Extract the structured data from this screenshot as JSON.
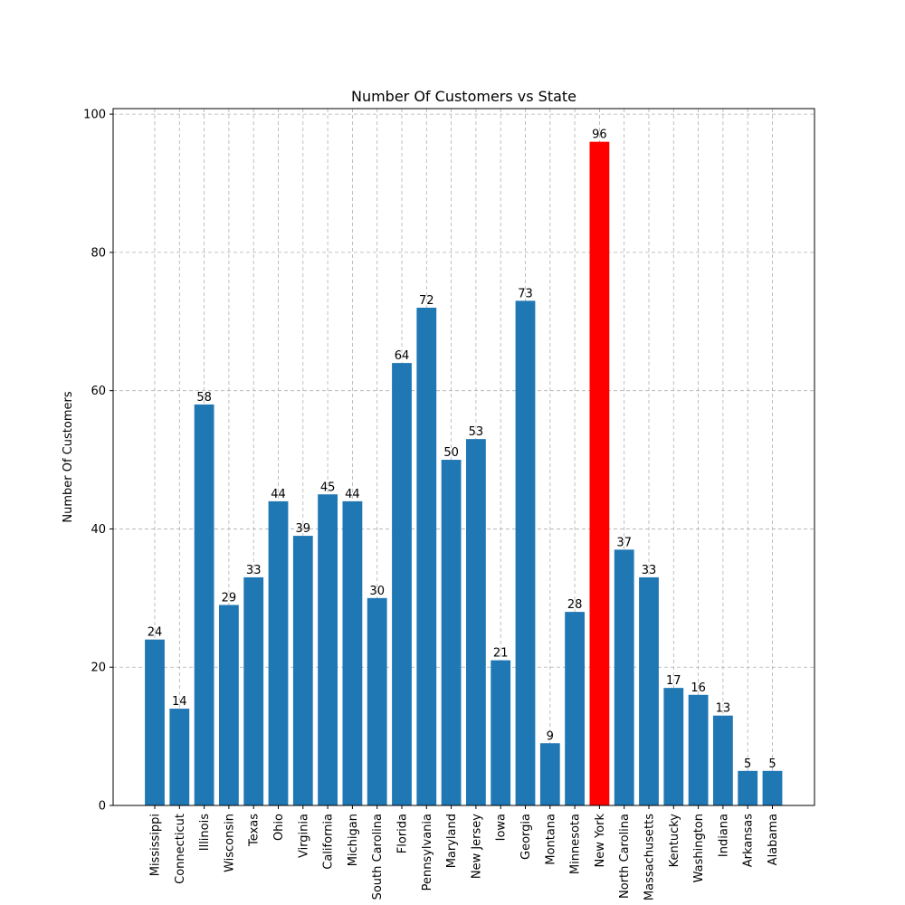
{
  "chart_data": {
    "type": "bar",
    "title": "Number Of Customers vs State",
    "xlabel": "",
    "ylabel": "Number Of Customers",
    "ylim": [
      0,
      100.8
    ],
    "yticks": [
      0,
      20,
      40,
      60,
      80,
      100
    ],
    "grid": true,
    "default_color": "#1f77b4",
    "highlight_color": "#ff0000",
    "categories": [
      "Mississippi",
      "Connecticut",
      "Illinois",
      "Wisconsin",
      "Texas",
      "Ohio",
      "Virginia",
      "California",
      "Michigan",
      "South Carolina",
      "Florida",
      "Pennsylvania",
      "Maryland",
      "New Jersey",
      "Iowa",
      "Georgia",
      "Montana",
      "Minnesota",
      "New York",
      "North Carolina",
      "Massachusetts",
      "Kentucky",
      "Washington",
      "Indiana",
      "Arkansas",
      "Alabama"
    ],
    "values": [
      24,
      14,
      58,
      29,
      33,
      44,
      39,
      45,
      44,
      30,
      64,
      72,
      50,
      53,
      21,
      73,
      9,
      28,
      96,
      37,
      33,
      17,
      16,
      13,
      5,
      5
    ],
    "highlight": [
      "New York"
    ]
  }
}
